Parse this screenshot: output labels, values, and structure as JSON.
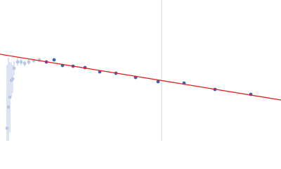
{
  "chart_data": {
    "type": "scatter",
    "xlim": [
      0,
      400
    ],
    "ylim": [
      0,
      200
    ],
    "series": [
      {
        "color": "#b8c9e6",
        "x": [
          10,
          12,
          14,
          16,
          18,
          20,
          25,
          30,
          35,
          41,
          48,
          56
        ],
        "values": [
          18,
          48,
          62,
          86,
          88,
          103,
          112,
          112,
          110,
          112,
          114,
          115
        ],
        "errors": [
          90,
          70,
          50,
          25,
          20,
          10,
          5,
          5,
          4,
          4,
          3,
          3
        ]
      },
      {
        "color": "#3a66b0",
        "x": [
          66,
          77,
          89,
          104,
          121,
          142,
          165,
          193,
          225,
          262,
          306,
          357
        ],
        "values": [
          112,
          115,
          107,
          106,
          104,
          98,
          96,
          90,
          84,
          82,
          73,
          66
        ]
      }
    ],
    "fit": {
      "color": "#e0201c",
      "x": [
        0,
        400
      ],
      "values": [
        123,
        58
      ]
    },
    "vline": {
      "color": "#c8d4ea",
      "x": 230
    }
  }
}
